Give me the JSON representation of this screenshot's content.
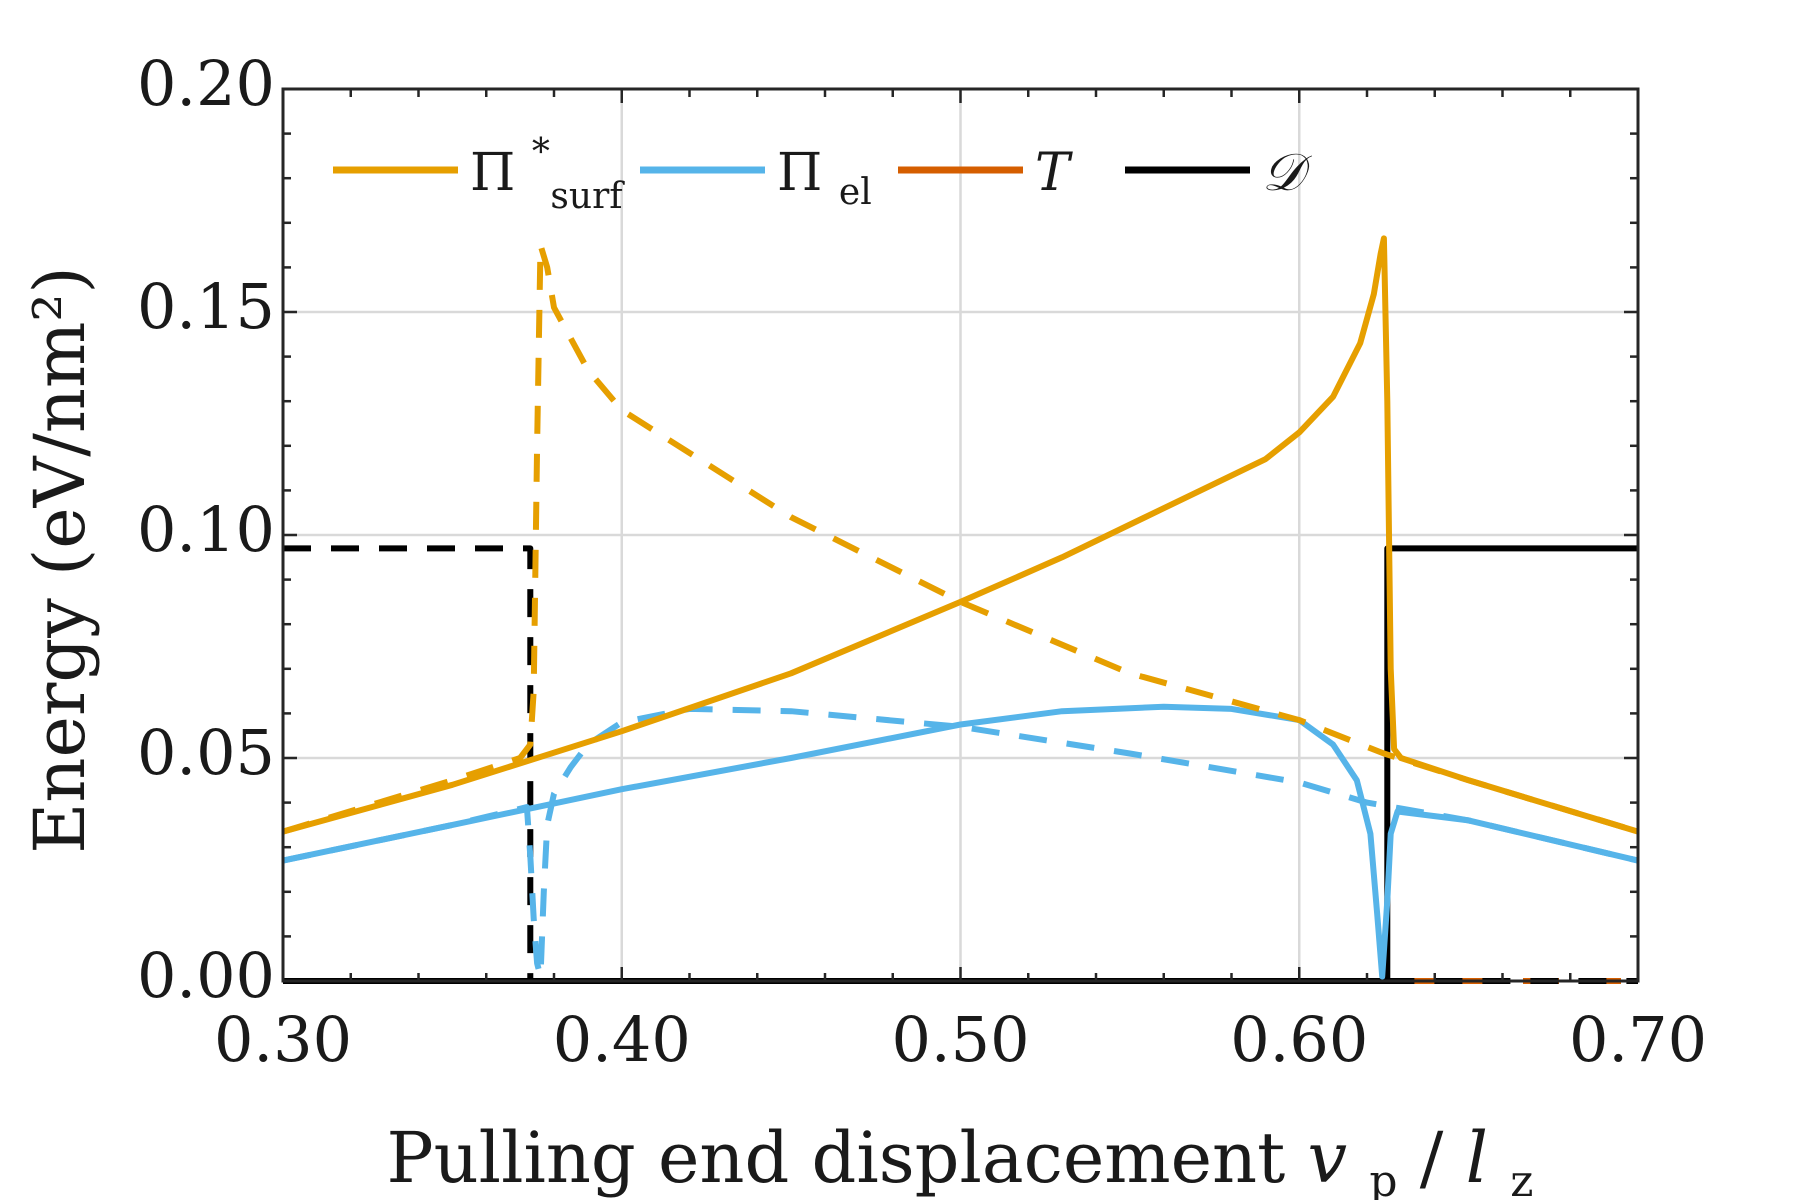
{
  "chart_data": {
    "type": "line",
    "xlabel_text": "Pulling end displacement",
    "xlabel_var": "v",
    "xlabel_var_sub": "p",
    "xlabel_slash": "/",
    "xlabel_var2": "l",
    "xlabel_var2_sub": "z",
    "ylabel": "Energy (eV/nm²)",
    "xlim": [
      0.3,
      0.7
    ],
    "ylim": [
      0.0,
      0.2
    ],
    "x_ticks": [
      0.3,
      0.4,
      0.5,
      0.6,
      0.7
    ],
    "x_tick_labels": [
      "0.30",
      "0.40",
      "0.50",
      "0.60",
      "0.70"
    ],
    "y_ticks": [
      0.0,
      0.05,
      0.1,
      0.15,
      0.2
    ],
    "y_tick_labels": [
      "0.00",
      "0.05",
      "0.10",
      "0.15",
      "0.20"
    ],
    "grid": true,
    "legend_position": "top",
    "legend": [
      {
        "name": "Π*surf",
        "main": "Π",
        "sup": "*",
        "sub": "surf",
        "color": "#E69F00"
      },
      {
        "name": "Πel",
        "main": "Π",
        "sup": "",
        "sub": "el",
        "color": "#56B4E9"
      },
      {
        "name": "T",
        "main": "T",
        "sup": "",
        "sub": "",
        "color": "#D55E00"
      },
      {
        "name": "D",
        "main": "𝒟",
        "sup": "",
        "sub": "",
        "color": "#000000"
      }
    ],
    "series": [
      {
        "name": "Π*surf (solid)",
        "color": "#E69F00",
        "style": "solid",
        "points": [
          [
            0.3,
            0.0335
          ],
          [
            0.35,
            0.044
          ],
          [
            0.4,
            0.056
          ],
          [
            0.45,
            0.069
          ],
          [
            0.5,
            0.085
          ],
          [
            0.53,
            0.095
          ],
          [
            0.56,
            0.106
          ],
          [
            0.59,
            0.117
          ],
          [
            0.6,
            0.123
          ],
          [
            0.61,
            0.131
          ],
          [
            0.618,
            0.143
          ],
          [
            0.622,
            0.154
          ],
          [
            0.624,
            0.163
          ],
          [
            0.625,
            0.1665
          ],
          [
            0.626,
            0.13
          ],
          [
            0.627,
            0.07
          ],
          [
            0.628,
            0.052
          ],
          [
            0.63,
            0.05
          ],
          [
            0.65,
            0.045
          ],
          [
            0.7,
            0.0335
          ]
        ]
      },
      {
        "name": "Π*surf (dashed)",
        "color": "#E69F00",
        "style": "dashed",
        "points": [
          [
            0.3,
            0.0335
          ],
          [
            0.35,
            0.045
          ],
          [
            0.37,
            0.05
          ],
          [
            0.373,
            0.053
          ],
          [
            0.374,
            0.065
          ],
          [
            0.375,
            0.12
          ],
          [
            0.376,
            0.165
          ],
          [
            0.378,
            0.16
          ],
          [
            0.38,
            0.151
          ],
          [
            0.39,
            0.137
          ],
          [
            0.4,
            0.128
          ],
          [
            0.45,
            0.104
          ],
          [
            0.5,
            0.085
          ],
          [
            0.55,
            0.069
          ],
          [
            0.6,
            0.0585
          ],
          [
            0.625,
            0.051
          ],
          [
            0.65,
            0.045
          ],
          [
            0.7,
            0.0335
          ]
        ]
      },
      {
        "name": "Πel (solid)",
        "color": "#56B4E9",
        "style": "solid",
        "points": [
          [
            0.3,
            0.027
          ],
          [
            0.35,
            0.035
          ],
          [
            0.4,
            0.043
          ],
          [
            0.45,
            0.05
          ],
          [
            0.5,
            0.0575
          ],
          [
            0.53,
            0.0605
          ],
          [
            0.56,
            0.0615
          ],
          [
            0.58,
            0.061
          ],
          [
            0.6,
            0.0585
          ],
          [
            0.61,
            0.053
          ],
          [
            0.617,
            0.045
          ],
          [
            0.621,
            0.033
          ],
          [
            0.623,
            0.015
          ],
          [
            0.6245,
            0.001
          ],
          [
            0.626,
            0.018
          ],
          [
            0.627,
            0.033
          ],
          [
            0.629,
            0.038
          ],
          [
            0.65,
            0.036
          ],
          [
            0.7,
            0.027
          ]
        ]
      },
      {
        "name": "Πel (dashed)",
        "color": "#56B4E9",
        "style": "dashed",
        "points": [
          [
            0.3,
            0.027
          ],
          [
            0.35,
            0.035
          ],
          [
            0.372,
            0.039
          ],
          [
            0.373,
            0.028
          ],
          [
            0.374,
            0.014
          ],
          [
            0.375,
            0.004
          ],
          [
            0.376,
            0.001
          ],
          [
            0.377,
            0.02
          ],
          [
            0.378,
            0.035
          ],
          [
            0.38,
            0.042
          ],
          [
            0.385,
            0.048
          ],
          [
            0.39,
            0.053
          ],
          [
            0.4,
            0.058
          ],
          [
            0.42,
            0.061
          ],
          [
            0.45,
            0.0605
          ],
          [
            0.5,
            0.057
          ],
          [
            0.55,
            0.051
          ],
          [
            0.6,
            0.0445
          ],
          [
            0.62,
            0.04
          ],
          [
            0.65,
            0.036
          ],
          [
            0.7,
            0.027
          ]
        ]
      },
      {
        "name": "T",
        "color": "#D55E00",
        "style": "solid",
        "points": [
          [
            0.3,
            0.0
          ],
          [
            0.7,
            0.0
          ]
        ]
      },
      {
        "name": "D (dashed)",
        "color": "#000000",
        "style": "dashed",
        "points": [
          [
            0.3,
            0.097
          ],
          [
            0.373,
            0.097
          ],
          [
            0.373,
            0.0
          ],
          [
            0.7,
            0.0
          ]
        ]
      },
      {
        "name": "D (solid)",
        "color": "#000000",
        "style": "solid",
        "points": [
          [
            0.3,
            0.0
          ],
          [
            0.626,
            0.0
          ],
          [
            0.626,
            0.097
          ],
          [
            0.7,
            0.097
          ]
        ]
      }
    ]
  }
}
